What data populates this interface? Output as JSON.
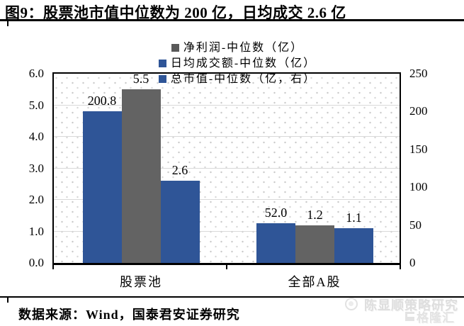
{
  "title": "图9：股票池市值中位数为 200 亿，日均成交 2.6 亿",
  "legend": [
    {
      "label": "净利润-中位数（亿）",
      "color": "#595959"
    },
    {
      "label": "日均成交额-中位数（亿）",
      "color": "#2f5597"
    },
    {
      "label": "总市值-中位数（亿，右）",
      "color": "#2f5597"
    }
  ],
  "chart_data": {
    "type": "bar",
    "categories": [
      "股票池",
      "全部A股"
    ],
    "series": [
      {
        "name": "总市值-中位数（亿，右）",
        "axis": "right",
        "color": "#2f5597",
        "values": [
          200.8,
          52.0
        ],
        "labels": [
          "200.8",
          "52.0"
        ]
      },
      {
        "name": "净利润-中位数（亿）",
        "axis": "left",
        "color": "#636363",
        "values": [
          5.5,
          1.2
        ],
        "labels": [
          "5.5",
          "1.2"
        ]
      },
      {
        "name": "日均成交额-中位数（亿）",
        "axis": "left",
        "color": "#2f5597",
        "values": [
          2.6,
          1.1
        ],
        "labels": [
          "2.6",
          "1.1"
        ]
      }
    ],
    "left_axis": {
      "min": 0,
      "max": 6,
      "ticks": [
        "6.0",
        "5.0",
        "4.0",
        "3.0",
        "2.0",
        "1.0",
        "0.0"
      ]
    },
    "right_axis": {
      "min": 0,
      "max": 250,
      "ticks": [
        "250",
        "200",
        "150",
        "100",
        "50",
        "0"
      ]
    },
    "grid": true,
    "legend_position": "top",
    "plot_pattern": "dotted",
    "bar_colors": {
      "blue": "#2f5597",
      "gray": "#636363"
    }
  },
  "source": "数据来源：Wind，国泰君安证券研究",
  "watermark": {
    "line1": "陈显顺策略研究",
    "line2": "格隆汇"
  }
}
